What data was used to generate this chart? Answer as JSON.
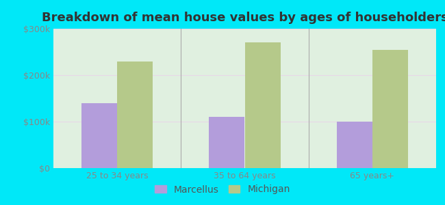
{
  "title": "Breakdown of mean house values by ages of householders",
  "categories": [
    "25 to 34 years",
    "35 to 64 years",
    "65 years+"
  ],
  "marcellus_values": [
    140000,
    110000,
    100000
  ],
  "michigan_values": [
    230000,
    270000,
    255000
  ],
  "marcellus_color": "#b39ddb",
  "michigan_color": "#b5c98a",
  "background_outer": "#00e8f8",
  "background_inner": "#e0f0e0",
  "ylim": [
    0,
    300000
  ],
  "yticks": [
    0,
    100000,
    200000,
    300000
  ],
  "ytick_labels": [
    "$0",
    "$100k",
    "$200k",
    "$300k"
  ],
  "legend_labels": [
    "Marcellus",
    "Michigan"
  ],
  "bar_width": 0.28,
  "title_fontsize": 13,
  "tick_fontsize": 9,
  "legend_fontsize": 10
}
